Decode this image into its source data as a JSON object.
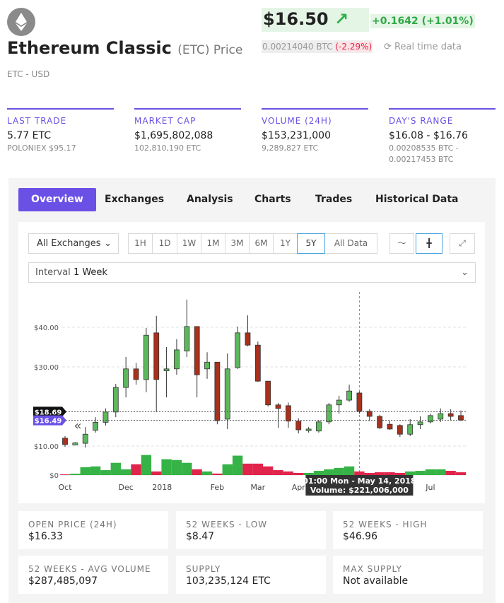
{
  "header": {
    "title": "Ethereum Classic",
    "symbol": "(ETC) Price",
    "pair": "ETC - USD",
    "price": "$16.50",
    "change": "+0.1642 (+1.01%)",
    "btc_price": "0.00214040 BTC",
    "btc_change": "(-2.29%)",
    "realtime": "Real time data"
  },
  "stats": [
    {
      "label": "LAST TRADE",
      "value": "5.77 ETC",
      "sub": [
        "POLONIEX $95.17"
      ]
    },
    {
      "label": "MARKET CAP",
      "value": "$1,695,802,088",
      "sub": [
        "102,810,190 ETC"
      ]
    },
    {
      "label": "VOLUME (24H)",
      "value": "$153,231,000",
      "sub": [
        "9,289,827 ETC"
      ]
    },
    {
      "label": "DAY'S RANGE",
      "value": "$16.08 - $16.76",
      "sub": [
        "0.00208535 BTC -",
        "0.00217453 BTC"
      ]
    }
  ],
  "tabs": [
    "Overview",
    "Exchanges",
    "Analysis",
    "Charts",
    "Trades",
    "Historical Data"
  ],
  "controls": {
    "exchange": "All Exchanges",
    "ranges": [
      "1H",
      "1D",
      "1W",
      "1M",
      "3M",
      "6M",
      "1Y",
      "5Y",
      "All Data"
    ],
    "interval_label": "Interval",
    "interval": "1 Week"
  },
  "chart": {
    "type": "candlestick",
    "categories": [
      "Oct",
      null,
      null,
      null,
      null,
      null,
      "Dec",
      null,
      null,
      "2018",
      null,
      null,
      null,
      null,
      null,
      "Feb",
      null,
      null,
      null,
      "Mar",
      null,
      null,
      null,
      "Apr",
      null,
      null,
      null,
      null,
      null,
      null,
      null,
      null,
      null,
      null,
      null,
      null,
      "Jul",
      null,
      null,
      null
    ],
    "candles": [
      {
        "open": 12,
        "high": 12.5,
        "low": 9.8,
        "close": 10.4
      },
      {
        "open": 10.3,
        "high": 11,
        "low": 10.2,
        "close": 10.8
      },
      {
        "open": 10.7,
        "high": 14.8,
        "low": 9.6,
        "close": 13
      },
      {
        "open": 14,
        "high": 17.3,
        "low": 13.4,
        "close": 16
      },
      {
        "open": 16,
        "high": 19.5,
        "low": 15.2,
        "close": 18.6
      },
      {
        "open": 18.6,
        "high": 25.7,
        "low": 17.3,
        "close": 24.8
      },
      {
        "open": 24.8,
        "high": 32.5,
        "low": 22.3,
        "close": 29.5
      },
      {
        "open": 29.5,
        "high": 31,
        "low": 25.5,
        "close": 26.8
      },
      {
        "open": 26.8,
        "high": 39.8,
        "low": 23.6,
        "close": 38
      },
      {
        "open": 38.6,
        "high": 42.9,
        "low": 18.6,
        "close": 26.8
      },
      {
        "open": 29,
        "high": 35,
        "low": 22.3,
        "close": 29.5
      },
      {
        "open": 29.5,
        "high": 37,
        "low": 28,
        "close": 34.3
      },
      {
        "open": 34,
        "high": 47,
        "low": 32.5,
        "close": 40.2
      },
      {
        "open": 40.2,
        "high": 40.2,
        "low": 22.3,
        "close": 28
      },
      {
        "open": 29.5,
        "high": 33.7,
        "low": 27,
        "close": 31.2
      },
      {
        "open": 31.2,
        "high": 31.2,
        "low": 15.5,
        "close": 16.4
      },
      {
        "open": 16.8,
        "high": 33.4,
        "low": 14.3,
        "close": 29.5
      },
      {
        "open": 29.8,
        "high": 40.2,
        "low": 29.5,
        "close": 38.6
      },
      {
        "open": 38.6,
        "high": 43,
        "low": 35.2,
        "close": 35.5
      },
      {
        "open": 35.5,
        "high": 36.4,
        "low": 26.2,
        "close": 26.4
      },
      {
        "open": 26.4,
        "high": 26.4,
        "low": 20,
        "close": 20.4
      },
      {
        "open": 20.4,
        "high": 20.9,
        "low": 14.6,
        "close": 19.5
      },
      {
        "open": 20.2,
        "high": 21,
        "low": 14.6,
        "close": 16.3
      },
      {
        "open": 16.3,
        "high": 17,
        "low": 13.2,
        "close": 14.1
      },
      {
        "open": 13.9,
        "high": 14.8,
        "low": 13.4,
        "close": 14.3
      },
      {
        "open": 13.8,
        "high": 16.6,
        "low": 13.4,
        "close": 16.1
      },
      {
        "open": 16.1,
        "high": 20.9,
        "low": 15.5,
        "close": 20.4
      },
      {
        "open": 20.4,
        "high": 22.7,
        "low": 18.2,
        "close": 21.6
      },
      {
        "open": 21.6,
        "high": 25.5,
        "low": 21.2,
        "close": 23.9
      },
      {
        "open": 23.4,
        "high": 23.8,
        "low": 18.2,
        "close": 18.8
      },
      {
        "open": 18.8,
        "high": 19.3,
        "low": 16.3,
        "close": 17.5
      },
      {
        "open": 17.5,
        "high": 17.9,
        "low": 14.3,
        "close": 14.6
      },
      {
        "open": 15.5,
        "high": 16.4,
        "low": 14.1,
        "close": 14.3
      },
      {
        "open": 15.2,
        "high": 15.5,
        "low": 12.3,
        "close": 13
      },
      {
        "open": 13,
        "high": 16.8,
        "low": 12.5,
        "close": 15.4
      },
      {
        "open": 15.4,
        "high": 17.5,
        "low": 14.3,
        "close": 16.1
      },
      {
        "open": 16.1,
        "high": 18.2,
        "low": 15.7,
        "close": 17.7
      },
      {
        "open": 16.8,
        "high": 19.5,
        "low": 16.1,
        "close": 18.2
      },
      {
        "open": 18.2,
        "high": 19.3,
        "low": 16.4,
        "close": 17.5
      },
      {
        "open": 17.7,
        "high": 19,
        "low": 16.3,
        "close": 16.6
      }
    ],
    "volume": [
      40000000,
      80000000,
      480000000,
      530000000,
      300000000,
      750000000,
      350000000,
      660000000,
      1230000000,
      220000000,
      970000000,
      920000000,
      750000000,
      350000000,
      220000000,
      90000000,
      660000000,
      1190000000,
      700000000,
      700000000,
      530000000,
      300000000,
      220000000,
      130000000,
      130000000,
      260000000,
      350000000,
      440000000,
      530000000,
      221006000,
      130000000,
      170000000,
      170000000,
      130000000,
      220000000,
      260000000,
      350000000,
      350000000,
      260000000,
      170000000
    ],
    "ylim": [
      0,
      50
    ],
    "yticks": [
      {
        "value": 10,
        "label": "$10.00"
      },
      {
        "value": 30,
        "label": "$30.00"
      },
      {
        "value": 40,
        "label": "$40.00"
      }
    ],
    "vlim": [
      0,
      1300000000
    ],
    "vticks": [
      {
        "value": 0,
        "label": "$0"
      }
    ],
    "up_color": "#3fa94a",
    "down_color": "#a8301c",
    "volume_up_color": "#35b346",
    "volume_down_color": "#e0244b",
    "price_lines": [
      {
        "value": 18.69,
        "label": "$18.69",
        "color": "#111111"
      },
      {
        "value": 16.49,
        "label": "$16.49",
        "color": "#6b50e6"
      }
    ],
    "tooltip": {
      "time": "01:00 Mon - May 14, 2018",
      "volume": "Volume: $221,006,000"
    }
  },
  "cards": [
    {
      "label": "OPEN PRICE (24H)",
      "value": "$16.33"
    },
    {
      "label": "52 WEEKS - LOW",
      "value": "$8.47"
    },
    {
      "label": "52 WEEKS - HIGH",
      "value": "$46.96"
    },
    {
      "label": "52 WEEKS - AVG VOLUME",
      "value": "$287,485,097"
    },
    {
      "label": "SUPPLY",
      "value": "103,235,124 ETC"
    },
    {
      "label": "MAX SUPPLY",
      "value": "Not available"
    }
  ]
}
